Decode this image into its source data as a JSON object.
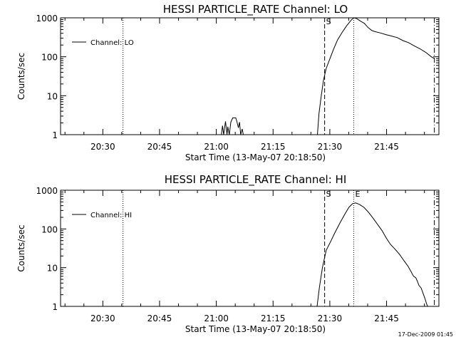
{
  "footer_timestamp": "17-Dec-2009 01:45",
  "chart_data": [
    {
      "type": "line",
      "title": "HESSI PARTICLE_RATE Channel: LO",
      "xlabel": "Start Time (13-May-07 20:18:50)",
      "ylabel": "Counts/sec",
      "yscale": "log",
      "ylim": [
        1,
        1000
      ],
      "xlim_minutes": [
        0,
        100
      ],
      "x_ticks": [
        {
          "minute": 11.17,
          "label": "20:30"
        },
        {
          "minute": 26.17,
          "label": "20:45"
        },
        {
          "minute": 41.17,
          "label": "21:00"
        },
        {
          "minute": 56.17,
          "label": "21:15"
        },
        {
          "minute": 71.17,
          "label": "21:30"
        },
        {
          "minute": 86.17,
          "label": "21:45"
        }
      ],
      "y_ticks": [
        {
          "value": 1,
          "label": "1"
        },
        {
          "value": 10,
          "label": "10"
        },
        {
          "value": 100,
          "label": "100"
        },
        {
          "value": 1000,
          "label": "1000"
        }
      ],
      "legend": {
        "position": "top-left",
        "label": "Channel: LO"
      },
      "vlines": [
        {
          "minute": 16.5,
          "style": "dotted"
        },
        {
          "minute": 69.8,
          "style": "dashed",
          "label": "S"
        },
        {
          "minute": 77.5,
          "style": "dotted"
        },
        {
          "minute": 98.8,
          "style": "dashdot"
        }
      ],
      "series": [
        {
          "name": "Channel: LO",
          "points": [
            [
              0,
              1
            ],
            [
              42.5,
              1
            ],
            [
              42.8,
              1.7
            ],
            [
              43.1,
              1
            ],
            [
              43.6,
              2.2
            ],
            [
              44,
              1
            ],
            [
              44.2,
              1.6
            ],
            [
              44.6,
              1
            ],
            [
              45,
              2.1
            ],
            [
              45.5,
              2.7
            ],
            [
              46.3,
              2.7
            ],
            [
              46.6,
              2.2
            ],
            [
              47,
              1.5
            ],
            [
              47.3,
              2.1
            ],
            [
              47.6,
              1
            ],
            [
              48,
              1.4
            ],
            [
              48.3,
              1
            ],
            [
              67.9,
              1
            ],
            [
              68.3,
              3.5
            ],
            [
              68.9,
              10
            ],
            [
              69.5,
              25
            ],
            [
              70.2,
              50
            ],
            [
              71.3,
              95
            ],
            [
              72.2,
              160
            ],
            [
              73.2,
              270
            ],
            [
              74.4,
              420
            ],
            [
              75.6,
              620
            ],
            [
              76.8,
              870
            ],
            [
              77.5,
              1000
            ],
            [
              78.3,
              950
            ],
            [
              79.2,
              830
            ],
            [
              80.3,
              720
            ],
            [
              81.3,
              560
            ],
            [
              82.3,
              470
            ],
            [
              83.2,
              440
            ],
            [
              84.5,
              410
            ],
            [
              86,
              370
            ],
            [
              87.5,
              340
            ],
            [
              89,
              310
            ],
            [
              90.5,
              260
            ],
            [
              92,
              230
            ],
            [
              93.5,
              190
            ],
            [
              95,
              160
            ],
            [
              96.5,
              130
            ],
            [
              98,
              100
            ],
            [
              98.8,
              90
            ]
          ]
        }
      ]
    },
    {
      "type": "line",
      "title": "HESSI PARTICLE_RATE Channel: HI",
      "xlabel": "Start Time (13-May-07 20:18:50)",
      "ylabel": "Counts/sec",
      "yscale": "log",
      "ylim": [
        1,
        1000
      ],
      "xlim_minutes": [
        0,
        100
      ],
      "x_ticks": [
        {
          "minute": 11.17,
          "label": "20:30"
        },
        {
          "minute": 26.17,
          "label": "20:45"
        },
        {
          "minute": 41.17,
          "label": "21:00"
        },
        {
          "minute": 56.17,
          "label": "21:15"
        },
        {
          "minute": 71.17,
          "label": "21:30"
        },
        {
          "minute": 86.17,
          "label": "21:45"
        }
      ],
      "y_ticks": [
        {
          "value": 1,
          "label": "1"
        },
        {
          "value": 10,
          "label": "10"
        },
        {
          "value": 100,
          "label": "100"
        },
        {
          "value": 1000,
          "label": "1000"
        }
      ],
      "legend": {
        "position": "top-left",
        "label": "Channel: HI"
      },
      "vlines": [
        {
          "minute": 16.5,
          "style": "dotted"
        },
        {
          "minute": 69.8,
          "style": "dashed",
          "label": "S"
        },
        {
          "minute": 77.5,
          "style": "dotted",
          "label": "E"
        },
        {
          "minute": 98.8,
          "style": "dashdot"
        }
      ],
      "series": [
        {
          "name": "Channel: HI",
          "points": [
            [
              0,
              1
            ],
            [
              67.8,
              1
            ],
            [
              68.4,
              3
            ],
            [
              69.2,
              10
            ],
            [
              70.2,
              28
            ],
            [
              71.5,
              50
            ],
            [
              72.5,
              80
            ],
            [
              73.8,
              140
            ],
            [
              75,
              230
            ],
            [
              76.2,
              360
            ],
            [
              77.2,
              450
            ],
            [
              78,
              470
            ],
            [
              79,
              430
            ],
            [
              80.2,
              360
            ],
            [
              81.4,
              270
            ],
            [
              82.6,
              190
            ],
            [
              83.8,
              130
            ],
            [
              85,
              90
            ],
            [
              86,
              60
            ],
            [
              87.2,
              40
            ],
            [
              88.4,
              30
            ],
            [
              89.6,
              22
            ],
            [
              90.8,
              15
            ],
            [
              91.8,
              11
            ],
            [
              92.6,
              8
            ],
            [
              93.3,
              6
            ],
            [
              93.9,
              5.5
            ],
            [
              94.3,
              4.5
            ],
            [
              94.7,
              3.5
            ],
            [
              95.3,
              3
            ],
            [
              95.8,
              2.2
            ],
            [
              96.3,
              1.6
            ],
            [
              96.7,
              1.2
            ],
            [
              97,
              1
            ]
          ]
        }
      ]
    }
  ]
}
